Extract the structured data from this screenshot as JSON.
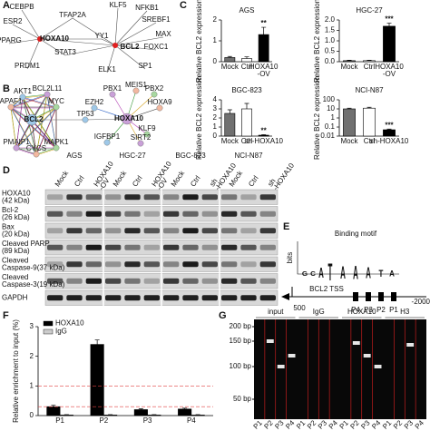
{
  "panel_labels": [
    "A",
    "B",
    "C",
    "D",
    "E",
    "F",
    "G"
  ],
  "network_a": {
    "nodes": [
      "CEBPB",
      "ESR2",
      "PPARG",
      "PRDM1",
      "TFAP2A",
      "STAT3",
      "YY1",
      "HOXA10",
      "BCL2",
      "KLF5",
      "NFKB1",
      "SREBF1",
      "MAX",
      "FOXC1",
      "ELK1",
      "SP1"
    ]
  },
  "network_b": {
    "nodes": [
      "AKT1",
      "BCL2L11",
      "APAF1",
      "MYC",
      "BCL2",
      "PMAIP1",
      "CYCS",
      "MAPK1",
      "TP53",
      "PBX1",
      "MEIS1",
      "PBX2",
      "EZH2",
      "HOXA10",
      "HOXA9",
      "KLF9",
      "IGFBP1",
      "SIRT2"
    ]
  },
  "chart_data": [
    {
      "type": "bar",
      "title": "AGS",
      "ylabel": "Relative BCL2 expression",
      "categories": [
        "Mock",
        "Ctrl",
        "HOXA10 -OV"
      ],
      "values": [
        0.2,
        0.15,
        1.3
      ],
      "errors": [
        0.05,
        0.08,
        0.35
      ],
      "colors": [
        "#707070",
        "#ffffff",
        "#000000"
      ],
      "significance": [
        null,
        null,
        "**"
      ],
      "ylim": [
        0,
        2
      ],
      "yticks": [
        0,
        1,
        2
      ]
    },
    {
      "type": "bar",
      "title": "HGC-27",
      "ylabel": "Relative BCL2 expression",
      "categories": [
        "Mock",
        "Ctrl",
        "HOXA10 -OV"
      ],
      "values": [
        0.05,
        0.05,
        1.7
      ],
      "errors": [
        0.02,
        0.02,
        0.15
      ],
      "colors": [
        "#707070",
        "#ffffff",
        "#000000"
      ],
      "significance": [
        null,
        null,
        "***"
      ],
      "ylim": [
        0,
        2
      ],
      "yticks": [
        {
          "value": 0,
          "label": "0.0"
        },
        {
          "value": 0.5,
          "label": "0.5"
        },
        {
          "value": 1,
          "label": "1.0"
        },
        {
          "value": 1.5,
          "label": "1.5"
        },
        {
          "value": 2,
          "label": "2.0"
        }
      ]
    },
    {
      "type": "bar",
      "title": "BGC-823",
      "ylabel": "Relative BCL2 expression",
      "categories": [
        "Mock",
        "Ctrl",
        "sh-HOXA10"
      ],
      "values": [
        2.5,
        3,
        0.1
      ],
      "errors": [
        0.4,
        0.6,
        0.05
      ],
      "colors": [
        "#707070",
        "#ffffff",
        "#000000"
      ],
      "significance": [
        null,
        null,
        "**"
      ],
      "ylim": [
        0,
        4
      ],
      "yticks": [
        0,
        1,
        2,
        3,
        4
      ]
    },
    {
      "type": "bar",
      "title": "NCI-N87",
      "ylabel": "Relative BCL2 expression",
      "categories": [
        "Mock",
        "Ctrl",
        "sh-HOXA10"
      ],
      "values": [
        10,
        12,
        0.05
      ],
      "errors": [
        2,
        3,
        0.01
      ],
      "colors": [
        "#707070",
        "#ffffff",
        "#000000"
      ],
      "significance": [
        null,
        null,
        "***"
      ],
      "log_scale": true,
      "ylim": [
        0.01,
        100
      ],
      "yticks": [
        0.01,
        0.1,
        1,
        10,
        100
      ]
    },
    {
      "type": "bar",
      "ylabel": "Relative enrichment to input (%)",
      "categories": [
        "P1",
        "P2",
        "P3",
        "P4"
      ],
      "series": [
        {
          "name": "HOXA10",
          "color": "#000000",
          "values": [
            0.3,
            2.4,
            0.2,
            0.22
          ],
          "errors": [
            0.05,
            0.15,
            0.03,
            0.03
          ]
        },
        {
          "name": "IgG",
          "color": "#cccccc",
          "values": [
            0.02,
            0.02,
            0.02,
            0.02
          ],
          "errors": [
            0.01,
            0.01,
            0.01,
            0.01
          ]
        }
      ],
      "ylim": [
        0,
        3
      ],
      "yticks": [
        0,
        1,
        2,
        3
      ],
      "legend": "top-left"
    }
  ],
  "western": {
    "groups": [
      "AGS",
      "HGC-27",
      "BGC-823",
      "NCI-N87"
    ],
    "lanes": [
      [
        "Mock",
        "Ctrl",
        "HOXA10 -OV"
      ],
      [
        "Mock",
        "Ctrl",
        "HOXA10 -OV"
      ],
      [
        "Mock",
        "Ctrl",
        "sh -HOXA10"
      ],
      [
        "Mock",
        "Ctrl",
        "sh -HOXA10"
      ]
    ],
    "rows": [
      [
        "HOXA10",
        "(42 kDa)"
      ],
      [
        "Bcl-2",
        "(26 kDa)"
      ],
      [
        "Bax",
        "(20 kDa)"
      ],
      [
        "Cleaved PARP",
        "(89 kDa)"
      ],
      [
        "Cleaved",
        "Caspase-9(37 kDa)"
      ],
      [
        "Cleaved",
        "Caspase-3(19 kDa)"
      ],
      [
        "GAPDH"
      ]
    ]
  },
  "motif": {
    "title": "Binding motif",
    "ylabel": "bits",
    "tss": "BCL2 TSS",
    "start": "500",
    "end": "-2000",
    "sites": [
      "P4",
      "P3",
      "P2",
      "P1"
    ]
  },
  "gel": {
    "markers": [
      "200 bp",
      "150 bp",
      "100 bp",
      "50 bp"
    ],
    "groups": [
      "input",
      "IgG",
      "HOXA10",
      "H3"
    ],
    "lanes": [
      "P1",
      "P2",
      "P3",
      "P4"
    ]
  }
}
